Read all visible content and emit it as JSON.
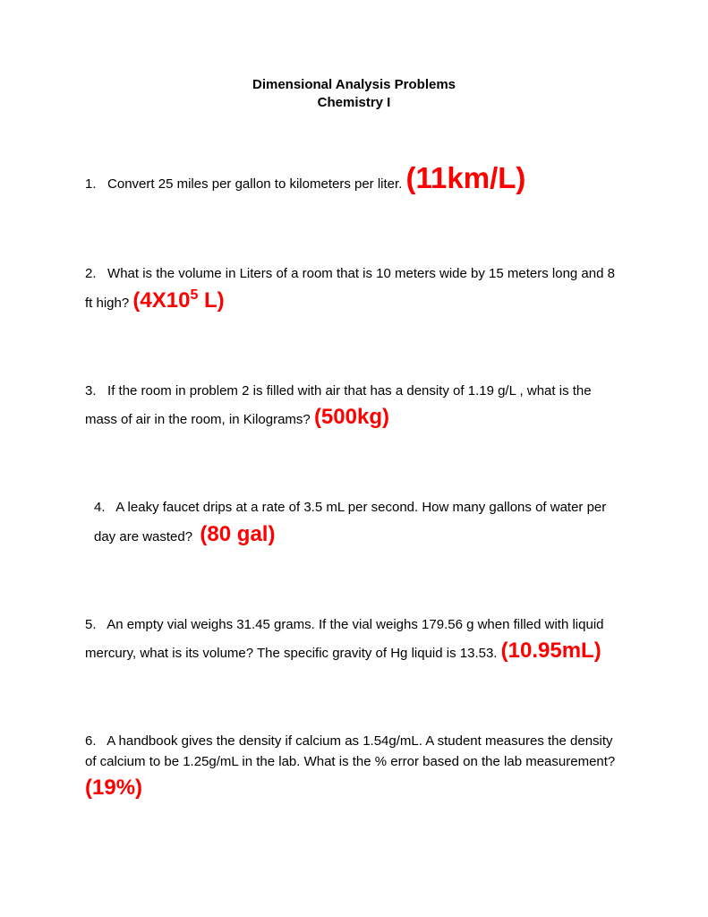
{
  "header": {
    "line1": "Dimensional Analysis Problems",
    "line2": "Chemistry I"
  },
  "problems": [
    {
      "num": "1.",
      "text_before": "Convert 25 miles per gallon to kilometers per liter.",
      "text_after": "",
      "answer": "(11km/L)",
      "answer_size": "big"
    },
    {
      "num": "2.",
      "text_before": "What is the volume in Liters of a room that is 10 meters wide by 15 meters long and 8 ft high?",
      "text_after": "",
      "answer": "(4X10",
      "answer_sup": "5",
      "answer_tail": " L)",
      "answer_size": "normal"
    },
    {
      "num": "3.",
      "text_before": "If the room in problem 2 is filled with air that has a density of 1.19 g/L , what is the mass of air in the room, in Kilograms?",
      "text_after": "",
      "answer": "(500kg)",
      "answer_size": "normal"
    },
    {
      "num": "4.",
      "text_before": "A leaky faucet drips at a rate of 3.5 mL per second.  How many gallons of water per day are wasted?",
      "text_after": "",
      "answer": "(80 gal)",
      "answer_size": "normal"
    },
    {
      "num": "5.",
      "text_before": "An empty vial weighs 31.45 grams.   If the vial weighs 179.56 g when filled with liquid mercury, what is its volume?   The specific gravity of Hg liquid is 13.53.",
      "text_after": "",
      "answer": "(10.95mL)",
      "answer_size": "normal"
    },
    {
      "num": "6.",
      "text_before": "A handbook gives the density if calcium as 1.54g/mL.   A student measures the density of calcium to be 1.25g/mL in the lab.   What is the % error based on the lab measurement?",
      "text_after": "",
      "answer": "(19%)",
      "answer_size": "normal"
    }
  ]
}
